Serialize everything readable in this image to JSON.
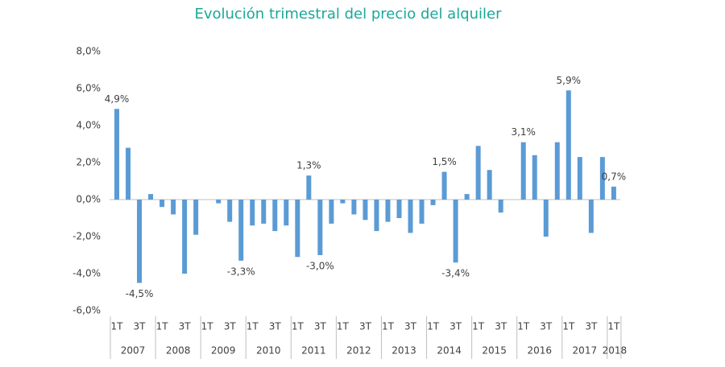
{
  "chart_data": {
    "type": "bar",
    "title": "Evolución trimestral del precio del alquiler",
    "categories": [
      "1T",
      null,
      "3T",
      null,
      "1T",
      null,
      "3T",
      null,
      "1T",
      null,
      "3T",
      null,
      "1T",
      null,
      "3T",
      null,
      "1T",
      null,
      "3T",
      null,
      "1T",
      null,
      "3T",
      null,
      "1T",
      null,
      "3T",
      null,
      "1T",
      null,
      "3T",
      null,
      "1T",
      null,
      "3T",
      null,
      "1T",
      null,
      "3T",
      null,
      "1T",
      null,
      "3T",
      null,
      "1T"
    ],
    "years": [
      "2007",
      "2008",
      "2009",
      "2010",
      "2011",
      "2012",
      "2013",
      "2014",
      "2015",
      "2016",
      "2017",
      "2018"
    ],
    "values": [
      4.9,
      2.8,
      -4.5,
      0.3,
      -0.4,
      -0.8,
      -4.0,
      -1.9,
      0,
      -0.2,
      -1.2,
      -3.3,
      -1.4,
      -1.3,
      -1.7,
      -1.4,
      -3.1,
      1.3,
      -3.0,
      -1.3,
      -0.2,
      -0.8,
      -1.1,
      -1.7,
      -1.2,
      -1.0,
      -1.8,
      -1.3,
      -0.3,
      1.5,
      -3.4,
      0.3,
      2.9,
      1.6,
      -0.7,
      0,
      3.1,
      2.4,
      -2.0,
      3.1,
      5.9,
      2.3,
      -1.8,
      2.3,
      0.7
    ],
    "value_labels": [
      "4,9%",
      null,
      "-4,5%",
      null,
      null,
      null,
      null,
      null,
      null,
      null,
      null,
      "-3,3%",
      null,
      null,
      null,
      null,
      null,
      "1,3%",
      "-3,0%",
      null,
      null,
      null,
      null,
      null,
      null,
      null,
      null,
      null,
      null,
      "1,5%",
      "-3,4%",
      null,
      null,
      null,
      null,
      null,
      "3,1%",
      null,
      null,
      null,
      "5,9%",
      null,
      null,
      null,
      "0,7%"
    ],
    "color": "#5b9bd5",
    "ylim": [
      -6,
      8
    ],
    "yticks": [
      {
        "value": -6,
        "label": "-6,0%"
      },
      {
        "value": -4,
        "label": "-4,0%"
      },
      {
        "value": -2,
        "label": "-2,0%"
      },
      {
        "value": 0,
        "label": "0,0%"
      },
      {
        "value": 2,
        "label": "2,0%"
      },
      {
        "value": 4,
        "label": "4,0%"
      },
      {
        "value": 6,
        "label": "6,0%"
      },
      {
        "value": 8,
        "label": "8,0%"
      }
    ],
    "grid": false
  }
}
